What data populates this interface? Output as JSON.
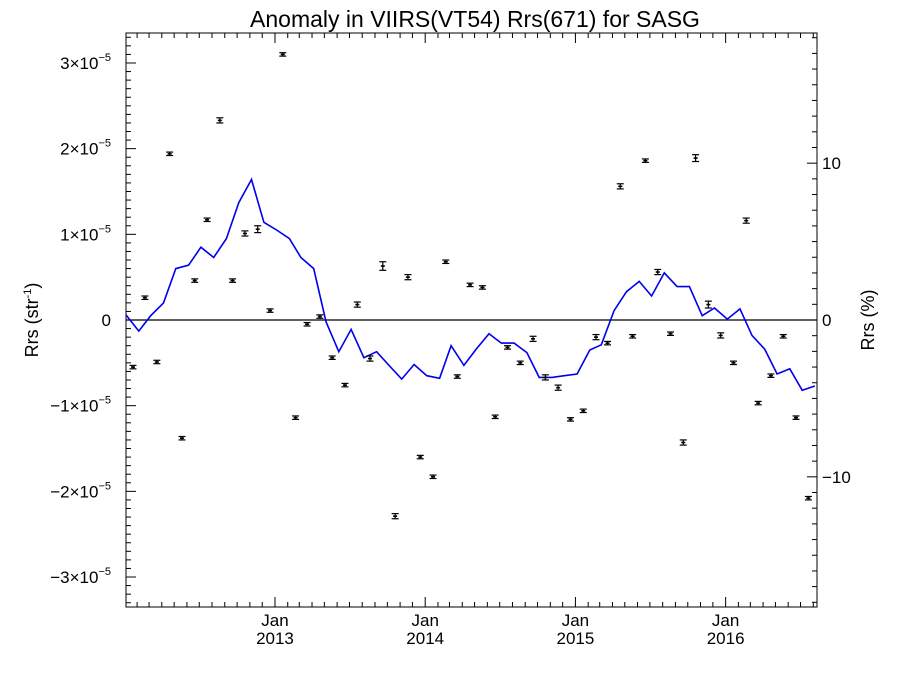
{
  "chart_data": {
    "type": "scatter",
    "title": "Anomaly in VIIRS(VT54) Rrs(671) for SASG",
    "ylabel_left": {
      "base": "Rrs (str",
      "exp": "-1",
      "close": ")"
    },
    "ylabel_right": "Rrs (%)",
    "xlim": [
      "2012-01-05",
      "2016-08-10"
    ],
    "ylim_left": [
      -3.35e-05,
      3.35e-05
    ],
    "ylim_right": [
      -18.3,
      18.3
    ],
    "x_ticks": [
      {
        "date": "2013-01-01",
        "month": "Jan",
        "year": "2013"
      },
      {
        "date": "2014-01-01",
        "month": "Jan",
        "year": "2014"
      },
      {
        "date": "2015-01-01",
        "month": "Jan",
        "year": "2015"
      },
      {
        "date": "2016-01-01",
        "month": "Jan",
        "year": "2016"
      }
    ],
    "y_ticks_left": [
      {
        "value": 3e-05,
        "mant": "3",
        "exp": "−5"
      },
      {
        "value": 2e-05,
        "mant": "2",
        "exp": "−5"
      },
      {
        "value": 1e-05,
        "mant": "1",
        "exp": "−5"
      },
      {
        "value": 0,
        "mant": "0",
        "exp": ""
      },
      {
        "value": -1e-05,
        "mant": "−1",
        "exp": "−5"
      },
      {
        "value": -2e-05,
        "mant": "−2",
        "exp": "−5"
      },
      {
        "value": -3e-05,
        "mant": "−3",
        "exp": "−5"
      }
    ],
    "y_ticks_right": [
      {
        "value": 10,
        "label": "10"
      },
      {
        "value": 0,
        "label": "0"
      },
      {
        "value": -10,
        "label": "−10"
      }
    ],
    "zero_line": 0,
    "series": [
      {
        "kind": "points_with_error_bars",
        "x": [
          "2012-01-22",
          "2012-02-20",
          "2012-03-20",
          "2012-04-20",
          "2012-05-20",
          "2012-06-20",
          "2012-07-20",
          "2012-08-20",
          "2012-09-20",
          "2012-10-20",
          "2012-11-20",
          "2012-12-20",
          "2013-01-20",
          "2013-02-20",
          "2013-03-20",
          "2013-04-20",
          "2013-05-20",
          "2013-06-20",
          "2013-07-20",
          "2013-08-20",
          "2013-09-20",
          "2013-10-20",
          "2013-11-20",
          "2013-12-20",
          "2014-01-20",
          "2014-02-20",
          "2014-03-20",
          "2014-04-20",
          "2014-05-20",
          "2014-06-20",
          "2014-07-20",
          "2014-08-20",
          "2014-09-20",
          "2014-10-20",
          "2014-11-20",
          "2014-12-20",
          "2015-01-20",
          "2015-02-20",
          "2015-03-20",
          "2015-04-20",
          "2015-05-20",
          "2015-06-20",
          "2015-07-20",
          "2015-08-20",
          "2015-09-20",
          "2015-10-20",
          "2015-11-20",
          "2015-12-20",
          "2016-01-20",
          "2016-02-20",
          "2016-03-20",
          "2016-04-20",
          "2016-05-20",
          "2016-06-20",
          "2016-07-20"
        ],
        "y": [
          -5.5e-06,
          2.6e-06,
          -4.9e-06,
          1.94e-05,
          -1.38e-05,
          4.6e-06,
          1.17e-05,
          2.33e-05,
          4.6e-06,
          1.01e-05,
          1.06e-05,
          1.1e-06,
          3.1e-05,
          -1.14e-05,
          -5e-07,
          4e-07,
          -4.4e-06,
          -7.6e-06,
          1.8e-06,
          -4.5e-06,
          6.3e-06,
          -2.29e-05,
          5e-06,
          -1.6e-05,
          -1.83e-05,
          6.8e-06,
          -6.6e-06,
          4.1e-06,
          3.8e-06,
          -1.13e-05,
          -3.2e-06,
          -5e-06,
          -2.2e-06,
          -6.7e-06,
          -7.9e-06,
          -1.16e-05,
          -1.06e-05,
          -2e-06,
          -2.7e-06,
          1.56e-05,
          -1.9e-06,
          1.86e-05,
          5.6e-06,
          -1.6e-06,
          -1.43e-05,
          1.89e-05,
          1.8e-06,
          -1.8e-06,
          -5e-06,
          1.16e-05,
          -9.7e-06,
          -6.5e-06,
          -1.9e-06,
          -1.14e-05,
          -2.08e-05
        ],
        "err": [
          2e-07,
          2e-07,
          2e-07,
          2e-07,
          2e-07,
          2e-07,
          2e-07,
          3e-07,
          2e-07,
          3e-07,
          4e-07,
          2e-07,
          2e-07,
          2e-07,
          2e-07,
          2e-07,
          2e-07,
          2e-07,
          3e-07,
          3e-07,
          5e-07,
          3e-07,
          3e-07,
          2e-07,
          2e-07,
          2e-07,
          2e-07,
          2e-07,
          2e-07,
          2e-07,
          2e-07,
          2e-07,
          3e-07,
          3e-07,
          3e-07,
          2e-07,
          2e-07,
          3e-07,
          2e-07,
          3e-07,
          2e-07,
          2e-07,
          3e-07,
          2e-07,
          3e-07,
          4e-07,
          4e-07,
          3e-07,
          2e-07,
          3e-07,
          2e-07,
          2e-07,
          2e-07,
          2e-07,
          2e-07
        ],
        "color": "#000000"
      },
      {
        "kind": "line",
        "x": [
          "2012-01-05",
          "2012-02-05",
          "2012-03-05",
          "2012-04-05",
          "2012-05-05",
          "2012-06-05",
          "2012-07-05",
          "2012-08-05",
          "2012-09-05",
          "2012-10-05",
          "2012-11-05",
          "2012-12-05",
          "2013-01-05",
          "2013-02-05",
          "2013-03-05",
          "2013-04-05",
          "2013-05-05",
          "2013-06-05",
          "2013-07-05",
          "2013-08-05",
          "2013-09-05",
          "2013-10-05",
          "2013-11-05",
          "2013-12-05",
          "2014-01-05",
          "2014-02-05",
          "2014-03-05",
          "2014-04-05",
          "2014-05-05",
          "2014-06-05",
          "2014-07-05",
          "2014-08-05",
          "2014-09-05",
          "2014-10-05",
          "2014-11-05",
          "2014-12-05",
          "2015-01-05",
          "2015-02-05",
          "2015-03-05",
          "2015-04-05",
          "2015-05-05",
          "2015-06-05",
          "2015-07-05",
          "2015-08-05",
          "2015-09-05",
          "2015-10-05",
          "2015-11-05",
          "2015-12-05",
          "2016-01-05",
          "2016-02-05",
          "2016-03-05",
          "2016-04-05",
          "2016-05-05",
          "2016-06-05",
          "2016-07-05",
          "2016-08-05"
        ],
        "y": [
          6e-07,
          -1.3e-06,
          5e-07,
          2e-06,
          6e-06,
          6.4e-06,
          8.5e-06,
          7.3e-06,
          9.5e-06,
          1.37e-05,
          1.64e-05,
          1.14e-05,
          1.05e-05,
          9.5e-06,
          7.3e-06,
          6e-06,
          -2e-07,
          -3.7e-06,
          -1.1e-06,
          -4.4e-06,
          -3.7e-06,
          -5.3e-06,
          -6.9e-06,
          -5.2e-06,
          -6.5e-06,
          -6.8e-06,
          -3e-06,
          -5.3e-06,
          -3.4e-06,
          -1.6e-06,
          -2.7e-06,
          -2.7e-06,
          -3.8e-06,
          -6.7e-06,
          -6.7e-06,
          -6.5e-06,
          -6.3e-06,
          -3.5e-06,
          -2.9e-06,
          1.1e-06,
          3.3e-06,
          4.5e-06,
          2.8e-06,
          5.5e-06,
          3.9e-06,
          3.9e-06,
          5e-07,
          1.4e-06,
          1e-07,
          1.3e-06,
          -1.8e-06,
          -3.4e-06,
          -6.3e-06,
          -5.7e-06,
          -8.2e-06,
          -7.7e-06
        ],
        "color": "#0000ee"
      }
    ]
  }
}
